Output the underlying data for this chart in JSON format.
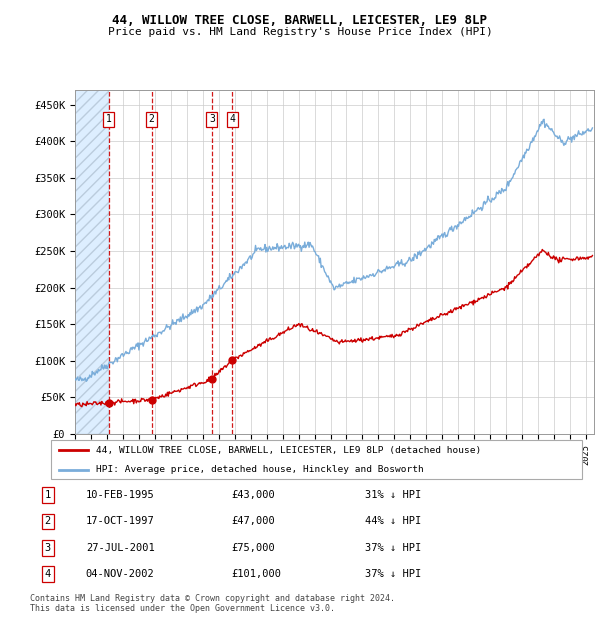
{
  "title": "44, WILLOW TREE CLOSE, BARWELL, LEICESTER, LE9 8LP",
  "subtitle": "Price paid vs. HM Land Registry's House Price Index (HPI)",
  "ylabel_ticks": [
    "£0",
    "£50K",
    "£100K",
    "£150K",
    "£200K",
    "£250K",
    "£300K",
    "£350K",
    "£400K",
    "£450K"
  ],
  "ytick_vals": [
    0,
    50000,
    100000,
    150000,
    200000,
    250000,
    300000,
    350000,
    400000,
    450000
  ],
  "ylim": [
    0,
    470000
  ],
  "xlim_start": 1993,
  "xlim_end": 2025.5,
  "hpi_color": "#7aadda",
  "price_color": "#cc0000",
  "grid_color": "#cccccc",
  "transactions": [
    {
      "label": "1",
      "date": 1995.11,
      "price": 43000,
      "date_str": "10-FEB-1995"
    },
    {
      "label": "2",
      "date": 1997.8,
      "price": 47000,
      "date_str": "17-OCT-1997"
    },
    {
      "label": "3",
      "date": 2001.57,
      "price": 75000,
      "date_str": "27-JUL-2001"
    },
    {
      "label": "4",
      "date": 2002.84,
      "price": 101000,
      "date_str": "04-NOV-2002"
    }
  ],
  "legend_property": "44, WILLOW TREE CLOSE, BARWELL, LEICESTER, LE9 8LP (detached house)",
  "legend_hpi": "HPI: Average price, detached house, Hinckley and Bosworth",
  "footer": "Contains HM Land Registry data © Crown copyright and database right 2024.\nThis data is licensed under the Open Government Licence v3.0.",
  "table_rows": [
    [
      "1",
      "10-FEB-1995",
      "£43,000",
      "31% ↓ HPI"
    ],
    [
      "2",
      "17-OCT-1997",
      "£47,000",
      "44% ↓ HPI"
    ],
    [
      "3",
      "27-JUL-2001",
      "£75,000",
      "37% ↓ HPI"
    ],
    [
      "4",
      "04-NOV-2002",
      "£101,000",
      "37% ↓ HPI"
    ]
  ]
}
